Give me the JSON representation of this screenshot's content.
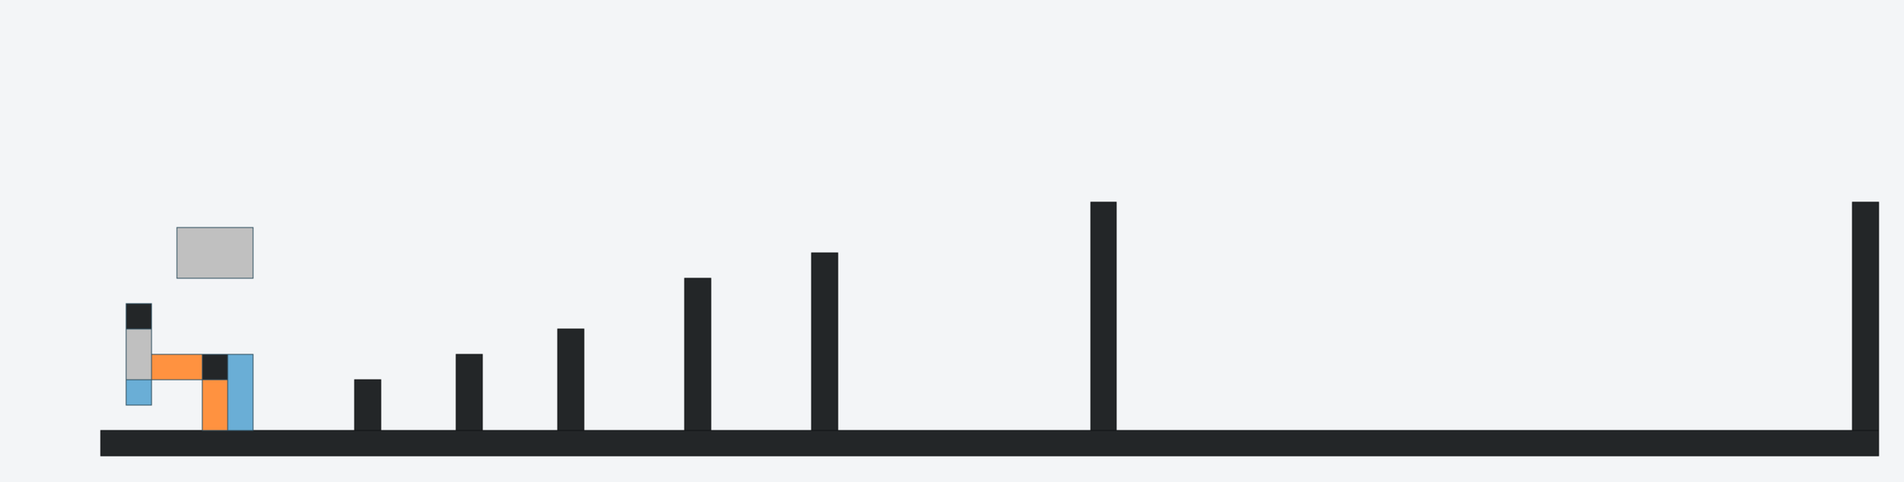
{
  "game": {
    "colors": {
      "background": "#f3f5f7",
      "wall": "#232628",
      "wall_outline": "#111416",
      "piece_gray": "#c0c0c0",
      "piece_orange": "#ff9240",
      "piece_blue": "#6aaed6",
      "piece_dark": "#232628",
      "piece_outline": "#2f4f5f"
    },
    "pieces": [
      {
        "name": "falling-block-gray",
        "color": "piece_gray"
      },
      {
        "name": "tetromino-block-dark",
        "color": "piece_dark"
      },
      {
        "name": "tetromino-block-gray",
        "color": "piece_gray"
      },
      {
        "name": "tetromino-block-blue",
        "color": "piece_blue"
      },
      {
        "name": "tetromino-block-orange",
        "color": "piece_orange"
      }
    ]
  }
}
